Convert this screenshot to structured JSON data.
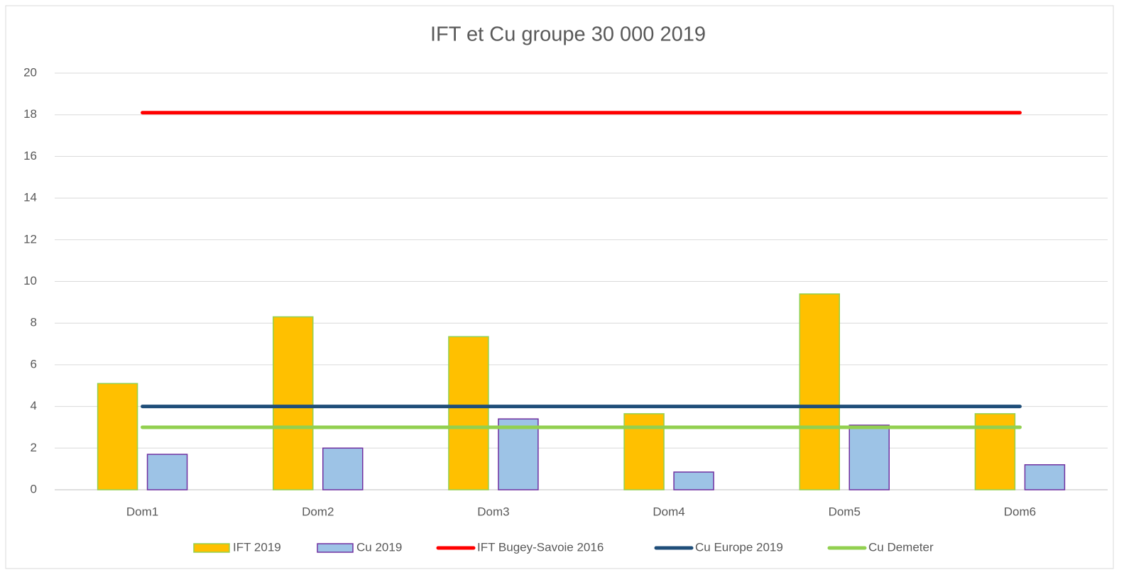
{
  "chart_data": {
    "type": "combo",
    "title": "IFT et Cu groupe 30 000 2019",
    "categories": [
      "Dom1",
      "Dom2",
      "Dom3",
      "Dom4",
      "Dom5",
      "Dom6"
    ],
    "series": [
      {
        "name": "IFT 2019",
        "type": "bar",
        "color": "#ffc000",
        "edge": "#92d050",
        "values": [
          5.1,
          8.3,
          7.35,
          3.65,
          9.4,
          3.65
        ]
      },
      {
        "name": "Cu 2019",
        "type": "bar",
        "color": "#9dc3e6",
        "edge": "#7030a0",
        "values": [
          1.7,
          2.0,
          3.4,
          0.85,
          3.1,
          1.2
        ]
      },
      {
        "name": "IFT Bugey-Savoie 2016",
        "type": "line",
        "color": "#ff0000",
        "values": [
          18.1,
          18.1,
          18.1,
          18.1,
          18.1,
          18.1
        ]
      },
      {
        "name": "Cu Europe 2019",
        "type": "line",
        "color": "#1f4e79",
        "values": [
          4,
          4,
          4,
          4,
          4,
          4
        ]
      },
      {
        "name": "Cu Demeter",
        "type": "line",
        "color": "#92d050",
        "values": [
          3,
          3,
          3,
          3,
          3,
          3
        ]
      }
    ],
    "ylim": [
      0,
      20
    ],
    "yticks": [
      0,
      2,
      4,
      6,
      8,
      10,
      12,
      14,
      16,
      18,
      20
    ],
    "grid": true,
    "legend": "bottom"
  }
}
